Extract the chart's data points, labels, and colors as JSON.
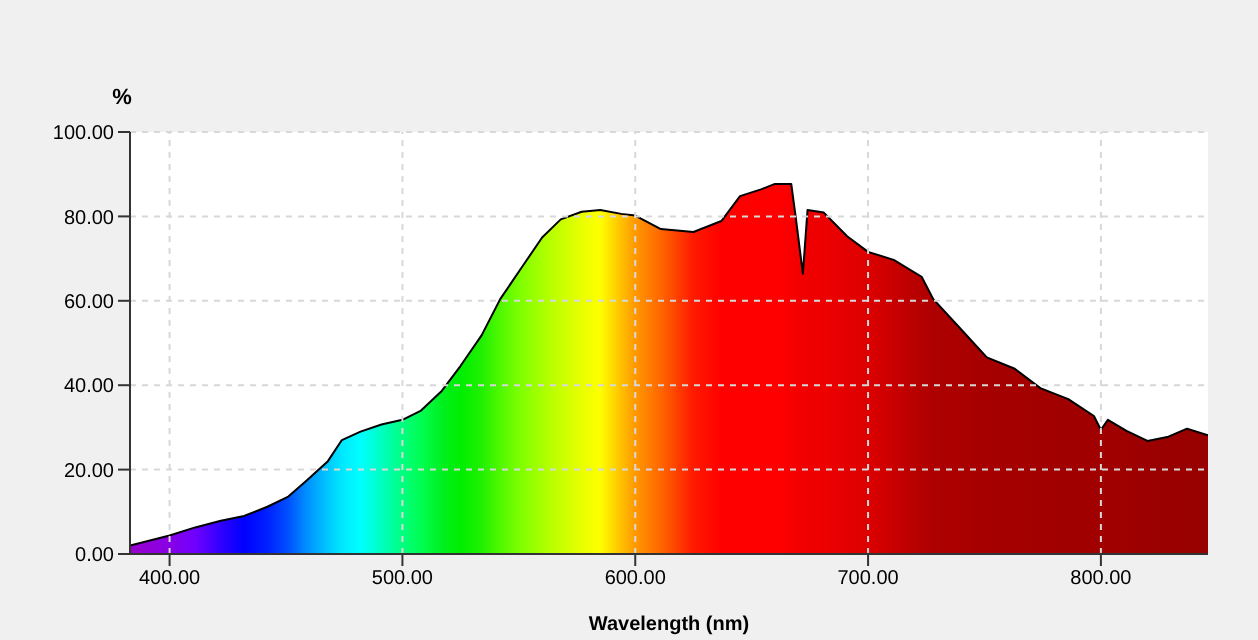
{
  "chart_data": {
    "type": "area",
    "xlabel": "Wavelength (nm)",
    "ylabel": "%",
    "x": [
      383,
      400,
      411,
      422,
      432,
      442,
      451,
      459,
      468,
      474,
      482,
      491,
      500,
      508,
      517,
      525,
      534,
      542,
      551,
      560,
      568,
      577,
      585,
      594,
      600,
      611,
      625,
      637,
      645,
      654,
      660,
      667,
      669,
      672,
      674,
      681,
      691,
      700,
      711,
      723,
      728,
      740,
      751,
      763,
      774,
      786,
      797,
      800,
      803,
      811,
      820,
      829,
      837,
      846
    ],
    "series": [
      {
        "color": "#000000",
        "values": [
          2,
          4.4,
          6.3,
          7.9,
          9,
          11.2,
          13.6,
          17.5,
          22,
          27,
          29,
          30.7,
          31.8,
          34,
          38.7,
          44.6,
          51.8,
          60.4,
          67.7,
          75,
          79.3,
          81.1,
          81.5,
          80.6,
          80.2,
          77,
          76.3,
          78.9,
          84.8,
          86.4,
          87.7,
          87.7,
          79.5,
          66.4,
          81.5,
          80.9,
          75.3,
          71.6,
          69.7,
          65.7,
          60.4,
          53.2,
          46.6,
          43.9,
          39.3,
          36.7,
          32.7,
          29.4,
          31.8,
          29.2,
          26.8,
          27.8,
          29.7,
          28.1
        ],
        "colors": [
          "#9900cc",
          "#8800e6",
          "#7000ff",
          "#3000ff",
          "#0000ff",
          "#0020ff",
          "#0050ff",
          "#0090ff",
          "#00c8ff",
          "#00e8ff",
          "#00ffff",
          "#00ffc0",
          "#00ff80",
          "#00ff50",
          "#00f020",
          "#00ee00",
          "#20f000",
          "#50f800",
          "#80ff00",
          "#a8ff00",
          "#c8ff00",
          "#e8ff00",
          "#ffff00",
          "#ffc000",
          "#ff9900",
          "#ff6600",
          "#ff1a00",
          "#ff0000",
          "#ff0000",
          "#ff0000",
          "#ff0000",
          "#f80000",
          "#f40000",
          "#f20000",
          "#f00000",
          "#ee0000",
          "#e40000",
          "#dd0000",
          "#c80000",
          "#b40000",
          "#ae0000",
          "#aa0000",
          "#a60000",
          "#a40000",
          "#a20000",
          "#a00000",
          "#a00000",
          "#a00000",
          "#a00000",
          "#9e0000",
          "#9c0000",
          "#9a0000",
          "#990000",
          "#990000"
        ]
      }
    ],
    "xlim": [
      383,
      846
    ],
    "ylim": [
      0,
      100
    ],
    "xticks": [
      {
        "value": 400,
        "label": "400.00"
      },
      {
        "value": 500,
        "label": "500.00"
      },
      {
        "value": 600,
        "label": "600.00"
      },
      {
        "value": 700,
        "label": "700.00"
      },
      {
        "value": 800,
        "label": "800.00"
      }
    ],
    "yticks": [
      {
        "value": 0,
        "label": "0.00"
      },
      {
        "value": 20,
        "label": "20.00"
      },
      {
        "value": 40,
        "label": "40.00"
      },
      {
        "value": 60,
        "label": "60.00"
      },
      {
        "value": 80,
        "label": "80.00"
      },
      {
        "value": 100,
        "label": "100.00"
      }
    ],
    "grid": true,
    "line_style": "solid"
  }
}
